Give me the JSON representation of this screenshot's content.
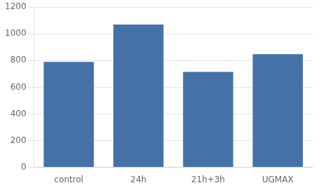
{
  "chart_data": {
    "type": "bar",
    "categories": [
      "control",
      "24h",
      "21h+3h",
      "UGMAX"
    ],
    "values": [
      790,
      1070,
      715,
      848
    ],
    "color": "#4472a8",
    "ylim": [
      0,
      1200
    ],
    "yticks": [
      0,
      200,
      400,
      600,
      800,
      1000,
      1200
    ],
    "grid": true
  }
}
